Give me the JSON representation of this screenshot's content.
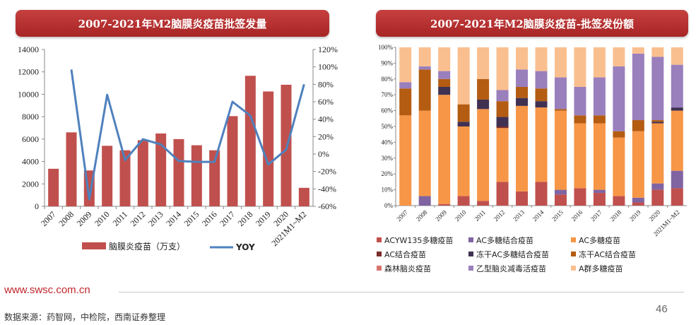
{
  "left_title": "2007-2021年M2脑膜炎疫苗批签发量",
  "right_title": "2007-2021年M2脑膜炎疫苗-批签发份额",
  "footer": {
    "url": "www.swsc.com.cn",
    "page_number": "46",
    "source": "数据来源：药智网，中检院，西南证券整理"
  },
  "chart_data": [
    {
      "type": "bar",
      "categories": [
        "2007",
        "2008",
        "2009",
        "2010",
        "2011",
        "2012",
        "2013",
        "2014",
        "2015",
        "2016",
        "2017",
        "2018",
        "2019",
        "2020",
        "2021M1~M2"
      ],
      "series": [
        {
          "name": "脑膜炎疫苗（万支）",
          "type": "bar",
          "axis": "left",
          "color": "#c0504d",
          "values": [
            3350,
            6600,
            3200,
            5400,
            5000,
            5900,
            6500,
            6000,
            5450,
            5000,
            8050,
            11650,
            10250,
            10850,
            1650
          ]
        },
        {
          "name": "YOY",
          "type": "line",
          "axis": "right",
          "color": "#4f81bd",
          "values": [
            null,
            97,
            -52,
            68,
            -7,
            17,
            11,
            -8,
            -9,
            -9,
            60,
            44,
            -12,
            5,
            80
          ]
        }
      ],
      "ylim_left": [
        0,
        14000
      ],
      "yticks_left": [
        "0",
        "2000",
        "4000",
        "6000",
        "8000",
        "10000",
        "12000",
        "14000"
      ],
      "ylim_right": [
        -60,
        120
      ],
      "yticks_right": [
        "-60%",
        "-40%",
        "-20%",
        "0%",
        "20%",
        "40%",
        "60%",
        "80%",
        "100%",
        "120%"
      ]
    },
    {
      "type": "bar",
      "stacked": true,
      "categories": [
        "2007",
        "2008",
        "2009",
        "2010",
        "2011",
        "2012",
        "2013",
        "2014",
        "2015",
        "2016",
        "2017",
        "2018",
        "2019",
        "2020",
        "2021M1~M2"
      ],
      "ylim": [
        0,
        100
      ],
      "yticks": [
        "0%",
        "10%",
        "20%",
        "30%",
        "40%",
        "50%",
        "60%",
        "70%",
        "80%",
        "90%",
        "100%"
      ],
      "series": [
        {
          "name": "ACYW135多糖疫苗",
          "color": "#c0504d",
          "values": [
            0,
            0,
            1,
            6,
            3,
            15,
            9,
            15,
            7,
            11,
            8,
            6,
            2,
            10,
            11
          ]
        },
        {
          "name": "AC多糖结合疫苗",
          "color": "#8064a2",
          "values": [
            0,
            6,
            0,
            0,
            0,
            0,
            0,
            0,
            3,
            0,
            2,
            0,
            3,
            4,
            11
          ]
        },
        {
          "name": "AC多糖疫苗",
          "color": "#f79646",
          "values": [
            57,
            54,
            69,
            44,
            58,
            34,
            54,
            47,
            50,
            41,
            42,
            37,
            42,
            38,
            38
          ]
        },
        {
          "name": "AC结合疫苗",
          "color": "#7b2c2a",
          "values": [
            0,
            0,
            0,
            0,
            0,
            1,
            0,
            0,
            0,
            0,
            0,
            0,
            0,
            0,
            0
          ]
        },
        {
          "name": "冻干AC多糖结合疫苗",
          "color": "#403152",
          "values": [
            0,
            0,
            5,
            3,
            6,
            6,
            5,
            4,
            0,
            0,
            0,
            0,
            0,
            1,
            2
          ]
        },
        {
          "name": "冻干AC结合疫苗",
          "color": "#b45c12",
          "values": [
            17,
            26,
            5,
            11,
            13,
            10,
            7,
            8,
            1,
            5,
            5,
            4,
            7,
            1,
            0
          ]
        },
        {
          "name": "森林脑炎疫苗",
          "color": "#d9746e",
          "values": [
            0,
            0,
            0,
            0,
            0,
            0,
            0,
            0,
            0,
            0,
            0,
            0,
            0,
            0,
            0
          ]
        },
        {
          "name": "乙型脑炎减毒活疫苗",
          "color": "#9a7fbd",
          "values": [
            4,
            2,
            5,
            0,
            0,
            7,
            11,
            11,
            20,
            18,
            24,
            41,
            42,
            40,
            27
          ]
        },
        {
          "name": "A群多糖疫苗",
          "color": "#fabf8f",
          "values": [
            22,
            12,
            15,
            36,
            20,
            27,
            14,
            15,
            19,
            25,
            19,
            12,
            4,
            6,
            11
          ]
        }
      ]
    }
  ]
}
